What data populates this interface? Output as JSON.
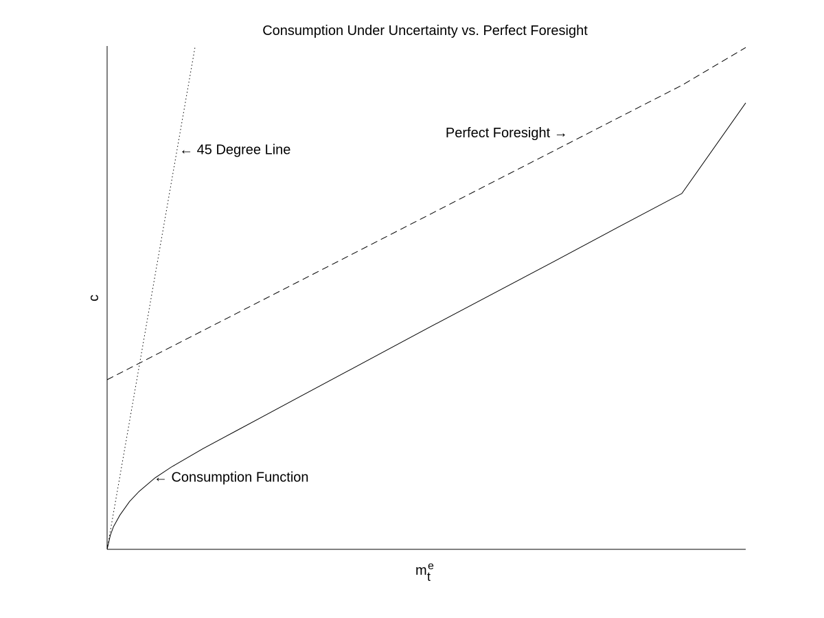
{
  "chart_data": {
    "type": "line",
    "title": "Consumption Under Uncertainty vs. Perfect Foresight",
    "xlabel": "m",
    "xlabel_subscript": "t",
    "xlabel_superscript": "e",
    "ylabel": "c",
    "xlim": [
      0,
      1
    ],
    "ylim": [
      0,
      1
    ],
    "grid": false,
    "axes": "left-bottom",
    "series": [
      {
        "style": "dotted",
        "color": "#000000",
        "x": [
          0,
          0.138
        ],
        "y": [
          0,
          1
        ]
      },
      {
        "style": "dashed",
        "color": "#000000",
        "x": [
          0,
          0.1,
          0.2,
          0.3,
          0.4,
          0.5,
          0.6,
          0.7,
          0.8,
          0.9,
          1.0
        ],
        "y": [
          0.337,
          0.402,
          0.467,
          0.532,
          0.597,
          0.662,
          0.727,
          0.792,
          0.857,
          0.922,
          0.997
        ]
      },
      {
        "style": "solid",
        "color": "#000000",
        "x": [
          0,
          0.005,
          0.01,
          0.02,
          0.035,
          0.05,
          0.075,
          0.1,
          0.15,
          0.2,
          0.25,
          0.3,
          0.4,
          0.5,
          0.6,
          0.7,
          0.8,
          0.9,
          1.0
        ],
        "y": [
          0,
          0.028,
          0.045,
          0.068,
          0.095,
          0.115,
          0.142,
          0.163,
          0.2,
          0.234,
          0.268,
          0.302,
          0.37,
          0.438,
          0.505,
          0.572,
          0.64,
          0.707,
          0.887
        ]
      }
    ],
    "annotations": [
      {
        "text": "← 45 Degree Line",
        "x": 0.113,
        "y": 0.795
      },
      {
        "text": "Perfect Foresight →",
        "x": 0.53,
        "y": 0.828
      },
      {
        "text": "← Consumption Function",
        "x": 0.073,
        "y": 0.144
      }
    ]
  }
}
